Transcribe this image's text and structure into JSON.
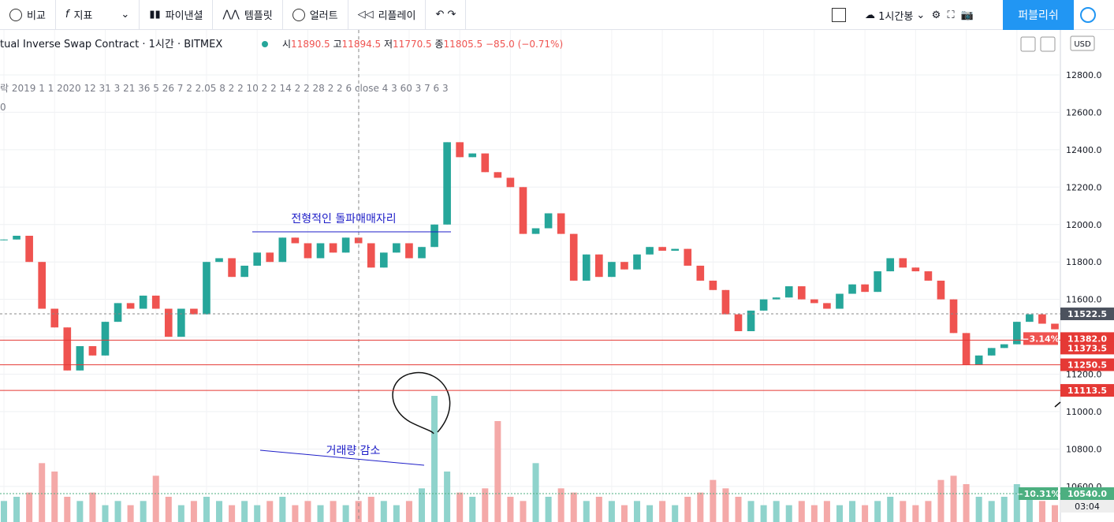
{
  "toolbar": {
    "items": [
      "비교",
      "지표",
      "파이낸셜",
      "템플릿",
      "얼러트",
      "리플레이"
    ],
    "interval": "1시간봉",
    "publish": "퍼블리쉬"
  },
  "legend": {
    "symbol": "tual Inverse Swap Contract · 1시간 · BITMEX",
    "open_label": "시",
    "open": 11890.5,
    "high_label": "고",
    "high": 11894.5,
    "low_label": "저",
    "low": 11770.5,
    "close_label": "종",
    "close": 11805.5,
    "change": "−85.0 (−0.71%)",
    "indicator": "락 2019 1 1 2020 12 31 3 21 36 5 26 7 2 2.05 8 2 2 10 2 2 14 2 2 28 2 2 6 close 4 3 60 3 7 6 3",
    "indicator2": "0"
  },
  "chart_data": {
    "type": "candlestick",
    "currency": "USD",
    "values": [
      11920,
      11940,
      11800,
      11550,
      11450,
      11220,
      11350,
      11300,
      11480,
      11580,
      11550,
      11620,
      11550,
      11400,
      11550,
      11520,
      11800,
      11820,
      11720,
      11780,
      11850,
      11800,
      11930,
      11900,
      11820,
      11900,
      11850,
      11930,
      11900,
      11770,
      11850,
      11900,
      11820,
      11880,
      12000,
      12440,
      12360,
      12380,
      12280,
      12250,
      12200,
      11950,
      11980,
      12060,
      11950,
      11700,
      11840,
      11720,
      11800,
      11760,
      11840,
      11880,
      11860,
      11870,
      11780,
      11700,
      11650,
      11520,
      11430,
      11540,
      11600,
      11610,
      11670,
      11600,
      11580,
      11550,
      11630,
      11680,
      11640,
      11750,
      11820,
      11770,
      11750,
      11700,
      11600,
      11420,
      11250,
      11300,
      11340,
      11360,
      11480,
      11520,
      11470,
      11440
    ],
    "volume": [
      25,
      30,
      35,
      70,
      60,
      30,
      25,
      35,
      20,
      25,
      20,
      25,
      55,
      30,
      20,
      25,
      30,
      25,
      20,
      25,
      20,
      25,
      30,
      20,
      25,
      20,
      25,
      20,
      25,
      30,
      25,
      20,
      25,
      40,
      150,
      60,
      35,
      30,
      40,
      120,
      30,
      25,
      70,
      30,
      40,
      35,
      25,
      30,
      25,
      20,
      25,
      20,
      25,
      20,
      30,
      35,
      50,
      40,
      30,
      25,
      20,
      25,
      20,
      25,
      20,
      25,
      20,
      25,
      20,
      25,
      30,
      25,
      20,
      25,
      50,
      55,
      45,
      30,
      25,
      30,
      45,
      30,
      25,
      20
    ],
    "ylim": [
      10410,
      13040
    ],
    "yticks": [
      {
        "value": 10600,
        "label": "10600.0"
      },
      {
        "value": 10800,
        "label": "10800.0"
      },
      {
        "value": 11000,
        "label": "11000.0"
      },
      {
        "value": 11200,
        "label": "11200.0"
      },
      {
        "value": 11400,
        "label": "11400.0"
      },
      {
        "value": 11600,
        "label": "11600.0"
      },
      {
        "value": 11800,
        "label": "11800.0"
      },
      {
        "value": 12000,
        "label": "12000.0"
      },
      {
        "value": 12200,
        "label": "12200.0"
      },
      {
        "value": 12400,
        "label": "12400.0"
      },
      {
        "value": 12600,
        "label": "12600.0"
      },
      {
        "value": 12800,
        "label": "12800.0"
      }
    ],
    "last_price": {
      "value": 11522.5,
      "label": "11522.5"
    },
    "levels": [
      {
        "value": 11382,
        "label": "11382.0",
        "color": "#e53935"
      },
      {
        "value": 11250.5,
        "label": "11250.5",
        "color": "#e53935"
      },
      {
        "value": 11113.5,
        "label": "11113.5",
        "color": "#e53935"
      }
    ],
    "level_extra": {
      "value": 11373.5,
      "label": "11373.5"
    },
    "pct_red": "−3.14%",
    "pct_green": "−10.31%",
    "vol_label": "10540.0",
    "countdown": "03:04",
    "annotations": [
      "전형적인 돌파매매자리",
      "거래량 감소"
    ]
  }
}
